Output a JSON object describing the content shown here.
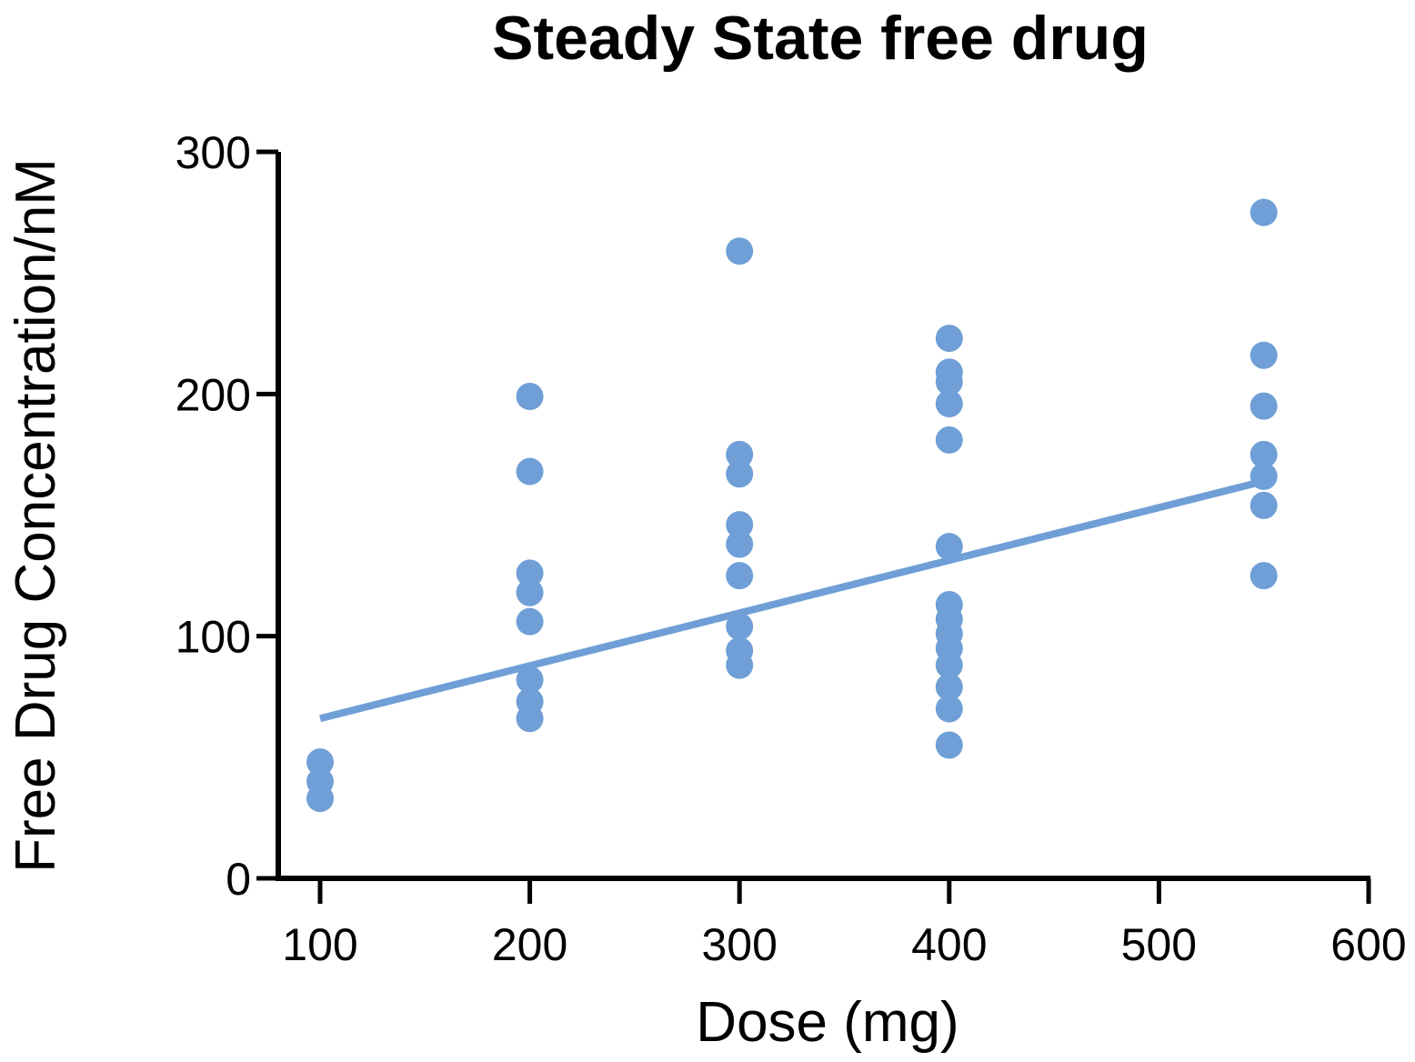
{
  "chart_data": {
    "type": "scatter",
    "title": "Steady State free drug",
    "xlabel": "Dose (mg)",
    "ylabel": "Free Drug Concentration/nM",
    "xlim": [
      80,
      600
    ],
    "ylim": [
      0,
      300
    ],
    "xticks": [
      100,
      200,
      300,
      400,
      500,
      600
    ],
    "yticks": [
      0,
      100,
      200,
      300
    ],
    "grid": false,
    "legend": "none",
    "point_color": "#6f9fd6",
    "line_color": "#6f9fd6",
    "series": [
      {
        "name": "Free drug",
        "points": [
          {
            "x": 100,
            "y": 48
          },
          {
            "x": 100,
            "y": 40
          },
          {
            "x": 100,
            "y": 33
          },
          {
            "x": 200,
            "y": 199
          },
          {
            "x": 200,
            "y": 168
          },
          {
            "x": 200,
            "y": 126
          },
          {
            "x": 200,
            "y": 118
          },
          {
            "x": 200,
            "y": 106
          },
          {
            "x": 200,
            "y": 82
          },
          {
            "x": 200,
            "y": 73
          },
          {
            "x": 200,
            "y": 66
          },
          {
            "x": 300,
            "y": 259
          },
          {
            "x": 300,
            "y": 175
          },
          {
            "x": 300,
            "y": 167
          },
          {
            "x": 300,
            "y": 146
          },
          {
            "x": 300,
            "y": 138
          },
          {
            "x": 300,
            "y": 125
          },
          {
            "x": 300,
            "y": 104
          },
          {
            "x": 300,
            "y": 94
          },
          {
            "x": 300,
            "y": 88
          },
          {
            "x": 400,
            "y": 223
          },
          {
            "x": 400,
            "y": 209
          },
          {
            "x": 400,
            "y": 205
          },
          {
            "x": 400,
            "y": 196
          },
          {
            "x": 400,
            "y": 181
          },
          {
            "x": 400,
            "y": 137
          },
          {
            "x": 400,
            "y": 113
          },
          {
            "x": 400,
            "y": 107
          },
          {
            "x": 400,
            "y": 101
          },
          {
            "x": 400,
            "y": 95
          },
          {
            "x": 400,
            "y": 88
          },
          {
            "x": 400,
            "y": 79
          },
          {
            "x": 400,
            "y": 70
          },
          {
            "x": 400,
            "y": 55
          },
          {
            "x": 550,
            "y": 275
          },
          {
            "x": 550,
            "y": 216
          },
          {
            "x": 550,
            "y": 195
          },
          {
            "x": 550,
            "y": 175
          },
          {
            "x": 550,
            "y": 166
          },
          {
            "x": 550,
            "y": 154
          },
          {
            "x": 550,
            "y": 125
          }
        ]
      }
    ],
    "trendline": {
      "x": [
        100,
        550
      ],
      "y": [
        66,
        164
      ]
    }
  }
}
